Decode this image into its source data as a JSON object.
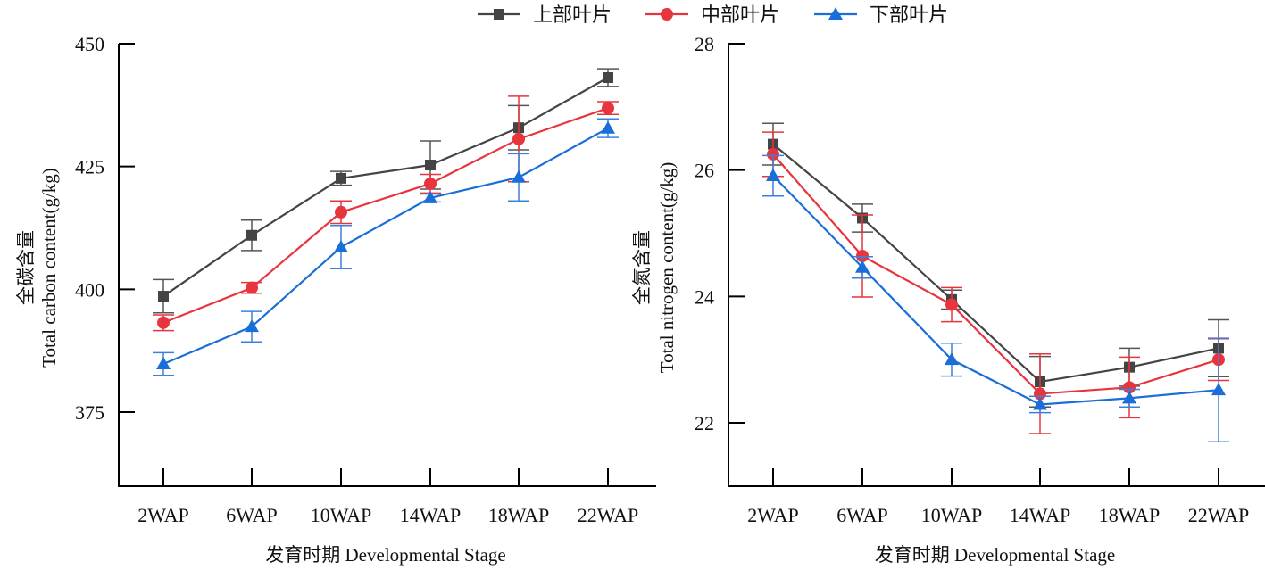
{
  "legend": {
    "position": "top-center",
    "items": [
      {
        "label": "上部叶片",
        "color": "#444444",
        "marker": "square"
      },
      {
        "label": "中部叶片",
        "color": "#e8343c",
        "marker": "circle"
      },
      {
        "label": "下部叶片",
        "color": "#1a6ed8",
        "marker": "triangle"
      }
    ]
  },
  "chart_data": [
    {
      "type": "line",
      "title": "",
      "xlabel": "发育时期 Developmental Stage",
      "ylabel_cn": "全碳含量",
      "ylabel": "Total carbon content(g/kg)",
      "categories": [
        "2WAP",
        "6WAP",
        "10WAP",
        "14WAP",
        "18WAP",
        "22WAP"
      ],
      "ylim": [
        365,
        450
      ],
      "yticks": [
        375,
        400,
        425,
        450
      ],
      "grid": false,
      "series": [
        {
          "name": "上部叶片",
          "values": [
            398.6,
            411.0,
            422.6,
            425.3,
            432.9,
            443.1
          ],
          "errors": [
            3.4,
            3.1,
            1.4,
            4.9,
            4.5,
            1.8
          ]
        },
        {
          "name": "中部叶片",
          "values": [
            393.2,
            400.3,
            415.7,
            421.5,
            430.6,
            436.9
          ],
          "errors": [
            1.6,
            1.1,
            2.3,
            1.9,
            8.7,
            1.3
          ]
        },
        {
          "name": "下部叶片",
          "values": [
            384.8,
            392.4,
            408.6,
            418.6,
            422.8,
            432.8
          ],
          "errors": [
            2.3,
            3.1,
            4.4,
            0.8,
            4.8,
            1.9
          ]
        }
      ]
    },
    {
      "type": "line",
      "title": "",
      "xlabel": "发育时期 Developmental Stage",
      "ylabel_cn": "全氮含量",
      "ylabel": "Total nitrogen content(g/kg)",
      "categories": [
        "2WAP",
        "6WAP",
        "10WAP",
        "14WAP",
        "18WAP",
        "22WAP"
      ],
      "ylim": [
        21,
        28
      ],
      "yticks": [
        22,
        24,
        26,
        28
      ],
      "grid": false,
      "series": [
        {
          "name": "上部叶片",
          "values": [
            26.41,
            25.24,
            23.95,
            22.65,
            22.88,
            23.18
          ],
          "errors": [
            0.33,
            0.22,
            0.15,
            0.4,
            0.3,
            0.45
          ]
        },
        {
          "name": "中部叶片",
          "values": [
            26.25,
            24.64,
            23.87,
            22.46,
            22.56,
            23.0
          ],
          "errors": [
            0.35,
            0.65,
            0.27,
            0.63,
            0.48,
            0.33
          ]
        },
        {
          "name": "下部叶片",
          "values": [
            25.91,
            24.46,
            23.0,
            22.29,
            22.39,
            22.52
          ],
          "errors": [
            0.32,
            0.17,
            0.26,
            0.13,
            0.14,
            0.82
          ]
        }
      ]
    }
  ]
}
